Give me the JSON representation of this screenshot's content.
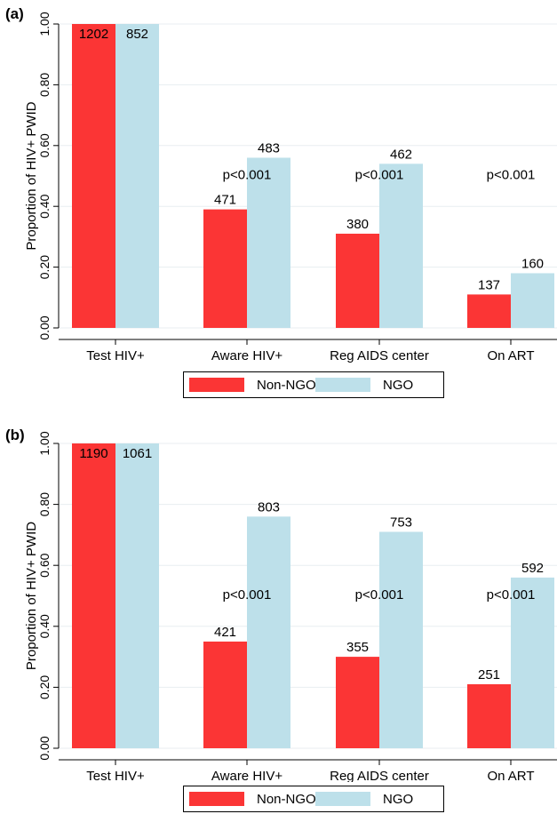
{
  "colors": {
    "non_ngo": "#fb3535",
    "ngo": "#bde0ea",
    "grid": "#e8eef1"
  },
  "legend": {
    "non_ngo": "Non-NGO",
    "ngo": "NGO"
  },
  "chart_data": [
    {
      "type": "bar",
      "panel_label": "(a)",
      "ylabel": "Proportion of HIV+ PWID",
      "ylim": [
        0,
        1
      ],
      "yticks": [
        "0.00",
        "0.20",
        "0.40",
        "0.60",
        "0.80",
        "1.00"
      ],
      "grid": true,
      "legend_position": "bottom",
      "categories": [
        "Test HIV+",
        "Aware HIV+",
        "Reg AIDS center",
        "On ART"
      ],
      "series": [
        {
          "name": "Non-NGO",
          "values": [
            1.0,
            0.39,
            0.31,
            0.11
          ],
          "labels": [
            "1202",
            "471",
            "380",
            "137"
          ]
        },
        {
          "name": "NGO",
          "values": [
            1.0,
            0.56,
            0.54,
            0.18
          ],
          "labels": [
            "852",
            "483",
            "462",
            "160"
          ]
        }
      ],
      "annotations": [
        "",
        "p<0.001",
        "p<0.001",
        "p<0.001"
      ],
      "annotation_y": 0.505
    },
    {
      "type": "bar",
      "panel_label": "(b)",
      "ylabel": "Proportion of HIV+ PWID",
      "ylim": [
        0,
        1
      ],
      "yticks": [
        "0.00",
        "0.20",
        "0.40",
        "0.60",
        "0.80",
        "1.00"
      ],
      "grid": true,
      "legend_position": "bottom",
      "categories": [
        "Test HIV+",
        "Aware HIV+",
        "Reg AIDS center",
        "On ART"
      ],
      "series": [
        {
          "name": "Non-NGO",
          "values": [
            1.0,
            0.35,
            0.3,
            0.21
          ],
          "labels": [
            "1190",
            "421",
            "355",
            "251"
          ]
        },
        {
          "name": "NGO",
          "values": [
            1.0,
            0.76,
            0.71,
            0.56
          ],
          "labels": [
            "1061",
            "803",
            "753",
            "592"
          ]
        }
      ],
      "annotations": [
        "",
        "p<0.001",
        "p<0.001",
        "p<0.001"
      ],
      "annotation_y": 0.505
    }
  ]
}
